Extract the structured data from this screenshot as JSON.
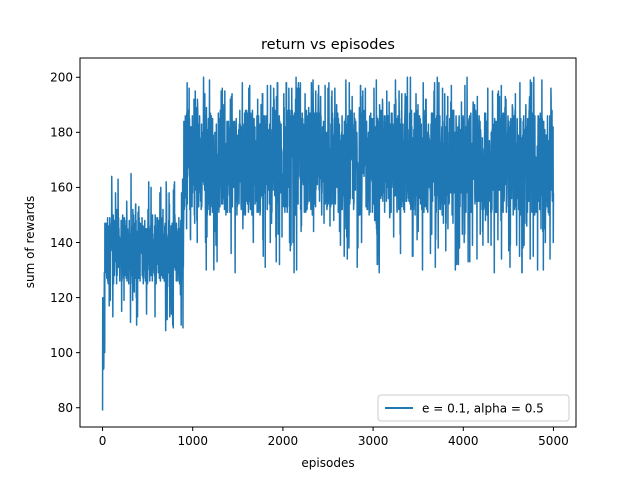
{
  "chart_data": {
    "type": "line",
    "title": "return vs episodes",
    "xlabel": "episodes",
    "ylabel": "sum of rewards",
    "xlim": [
      -250,
      5250
    ],
    "ylim": [
      73,
      207
    ],
    "xticks": [
      0,
      1000,
      2000,
      3000,
      4000,
      5000
    ],
    "yticks": [
      80,
      100,
      120,
      140,
      160,
      180,
      200
    ],
    "grid": false,
    "legend_position": "lower-right",
    "series": [
      {
        "name": "e = 0.1, alpha = 0.5",
        "color": "#1f77b4",
        "x_range": [
          0,
          5000
        ],
        "phases": [
          {
            "x": [
              0,
              25
            ],
            "low": 79,
            "high": 140,
            "typical_low": 88,
            "typical_high": 120
          },
          {
            "x": [
              25,
              900
            ],
            "low": 108,
            "high": 165,
            "typical_low": 125,
            "typical_high": 150
          },
          {
            "x": [
              900,
              5000
            ],
            "low": 129,
            "high": 200,
            "typical_low": 150,
            "typical_high": 188
          }
        ],
        "notable_points": [
          {
            "x": 0,
            "y": 79
          },
          {
            "x": 700,
            "y": 108
          },
          {
            "x": 1120,
            "y": 200
          },
          {
            "x": 3380,
            "y": 200
          },
          {
            "x": 3050,
            "y": 132
          },
          {
            "x": 4650,
            "y": 129
          }
        ]
      }
    ]
  }
}
